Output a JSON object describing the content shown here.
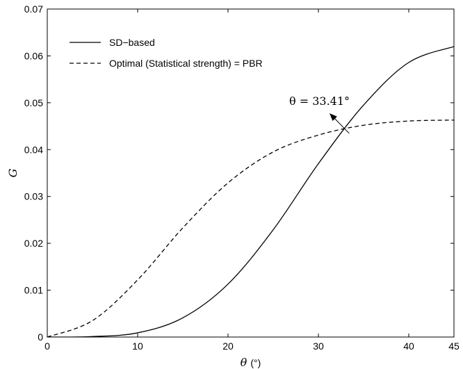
{
  "chart_data": {
    "type": "line",
    "title": "",
    "xlabel": {
      "symbol": "θ",
      "unit": "(°)"
    },
    "ylabel": "G",
    "xlim": [
      0,
      45
    ],
    "ylim": [
      0,
      0.07
    ],
    "x_ticks": [
      "0",
      "10",
      "20",
      "30",
      "40",
      "45"
    ],
    "x_tick_values": [
      0,
      10,
      20,
      30,
      40,
      45
    ],
    "y_ticks": [
      "0",
      "0.01",
      "0.02",
      "0.03",
      "0.04",
      "0.05",
      "0.06",
      "0.07"
    ],
    "y_tick_values": [
      0,
      0.01,
      0.02,
      0.03,
      0.04,
      0.05,
      0.06,
      0.07
    ],
    "grid": false,
    "legend_position": "top-left",
    "series": [
      {
        "name": "SD−based",
        "style": "solid",
        "color": "#000000",
        "x": [
          0,
          5,
          10,
          15,
          20,
          25,
          30,
          35,
          40,
          45
        ],
        "y": [
          0,
          0.0001,
          0.0009,
          0.0041,
          0.0113,
          0.0229,
          0.037,
          0.0495,
          0.0586,
          0.062
        ]
      },
      {
        "name": "Optimal (Statistical strength) = PBR",
        "style": "dashed",
        "color": "#000000",
        "x": [
          0,
          5,
          10,
          15,
          20,
          25,
          30,
          35,
          40,
          45
        ],
        "y": [
          0,
          0.0035,
          0.0122,
          0.0233,
          0.0329,
          0.0395,
          0.0431,
          0.0452,
          0.0461,
          0.0463
        ]
      }
    ],
    "annotation": {
      "text": "θ = 33.41°",
      "x": 33.41,
      "y": 0.04346
    }
  }
}
